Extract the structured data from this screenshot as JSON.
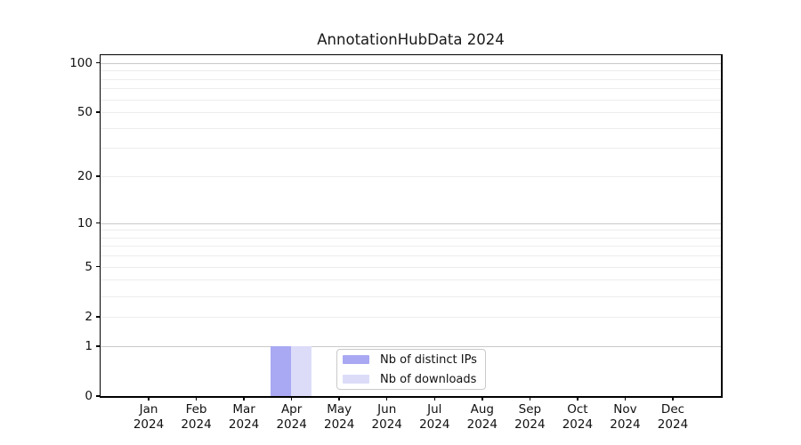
{
  "title": "AnnotationHubData 2024",
  "colors": {
    "distinct_ips_bar": "#a9a9f3",
    "downloads_bar": "#dcdcf9",
    "spine": "#000000",
    "major_gridline": "#c9c9c9",
    "minor_gridline": "#ededed",
    "background": "#ffffff"
  },
  "legend": {
    "items": [
      {
        "label": "Nb of distinct IPs",
        "color": "#a9a9f3"
      },
      {
        "label": "Nb of downloads",
        "color": "#dcdcf9"
      }
    ],
    "position": "lower-center-inside"
  },
  "x_axis": {
    "months": [
      "Jan",
      "Feb",
      "Mar",
      "Apr",
      "May",
      "Jun",
      "Jul",
      "Aug",
      "Sep",
      "Oct",
      "Nov",
      "Dec"
    ],
    "year": "2024"
  },
  "y_axis": {
    "labeled_ticks": [
      0,
      1,
      2,
      5,
      10,
      20,
      50,
      100
    ],
    "tick_labels": [
      "0",
      "1",
      "2",
      "5",
      "10",
      "20",
      "50",
      "100"
    ],
    "major_gridlines": [
      1,
      10,
      100
    ],
    "minor_gridlines": [
      2,
      3,
      4,
      5,
      6,
      7,
      8,
      9,
      20,
      30,
      40,
      50,
      60,
      70,
      80,
      90
    ]
  },
  "chart_data": {
    "type": "bar",
    "title": "AnnotationHubData 2024",
    "categories": [
      "Jan 2024",
      "Feb 2024",
      "Mar 2024",
      "Apr 2024",
      "May 2024",
      "Jun 2024",
      "Jul 2024",
      "Aug 2024",
      "Sep 2024",
      "Oct 2024",
      "Nov 2024",
      "Dec 2024"
    ],
    "series": [
      {
        "name": "Nb of distinct IPs",
        "color": "#a9a9f3",
        "values": [
          0,
          0,
          0,
          1,
          0,
          0,
          0,
          0,
          0,
          0,
          0,
          0
        ]
      },
      {
        "name": "Nb of downloads",
        "color": "#dcdcf9",
        "values": [
          0,
          0,
          0,
          1,
          0,
          0,
          0,
          0,
          0,
          0,
          0,
          0
        ]
      }
    ],
    "xlabel": "",
    "ylabel": "",
    "yscale": "log1p",
    "ylim": [
      0,
      110
    ],
    "ytick_values": [
      0,
      1,
      2,
      5,
      10,
      20,
      50,
      100
    ],
    "grid": true,
    "legend_position": "lower-center-inside"
  }
}
